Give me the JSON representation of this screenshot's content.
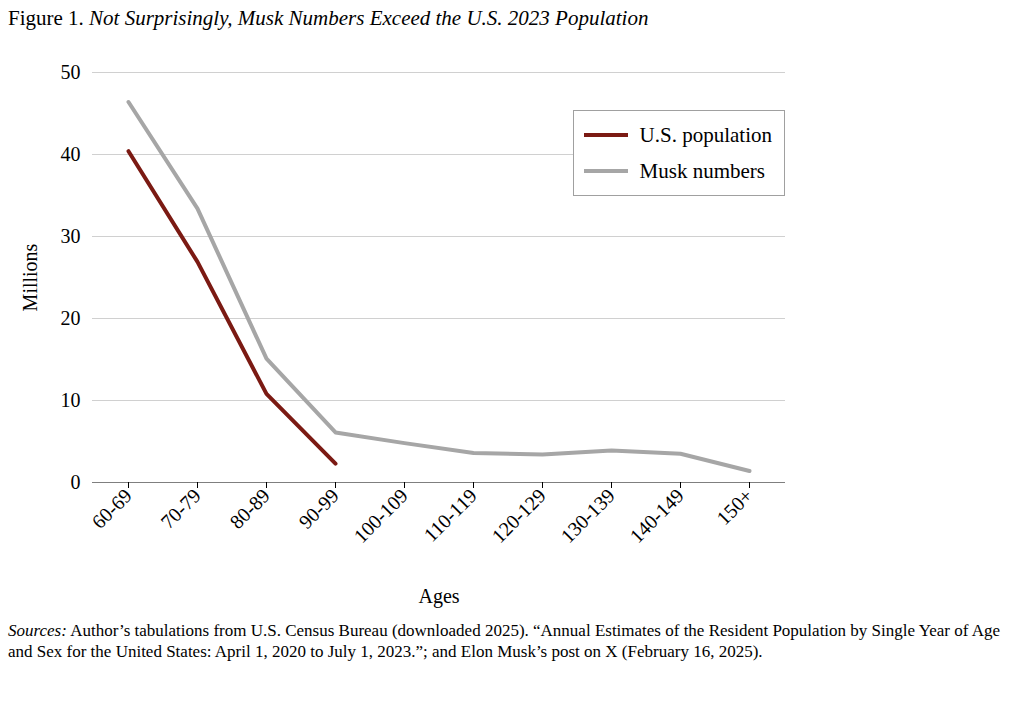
{
  "chart_data": {
    "type": "line",
    "title": "Figure 1. Not Surprisingly, Musk Numbers Exceed the U.S. 2023 Population",
    "xlabel": "Ages",
    "ylabel": "Millions",
    "categories": [
      "60-69",
      "70-79",
      "80-89",
      "90-99",
      "100-109",
      "110-119",
      "120-129",
      "130-139",
      "140-149",
      "150+"
    ],
    "series": [
      {
        "name": "U.S. population",
        "color": "#7b1a13",
        "values": [
          40.4,
          26.9,
          10.8,
          2.3,
          null,
          null,
          null,
          null,
          null,
          null
        ]
      },
      {
        "name": "Musk numbers",
        "color": "#a6a6a6",
        "values": [
          46.4,
          33.4,
          15.1,
          6.1,
          4.8,
          3.6,
          3.4,
          3.9,
          3.5,
          1.4
        ]
      }
    ],
    "ylim": [
      0,
      50
    ],
    "yticks": [
      0,
      10,
      20,
      30,
      40,
      50
    ],
    "grid": true,
    "legend": "upper right",
    "caption": "Sources: Author’s tabulations from U.S. Census Bureau (downloaded 2025). “Annual Estimates of the Resident Population by Single Year of Age and Sex for the United States: April 1, 2020 to July 1, 2023.”; and Elon Musk’s post on X (February 16, 2025)."
  }
}
